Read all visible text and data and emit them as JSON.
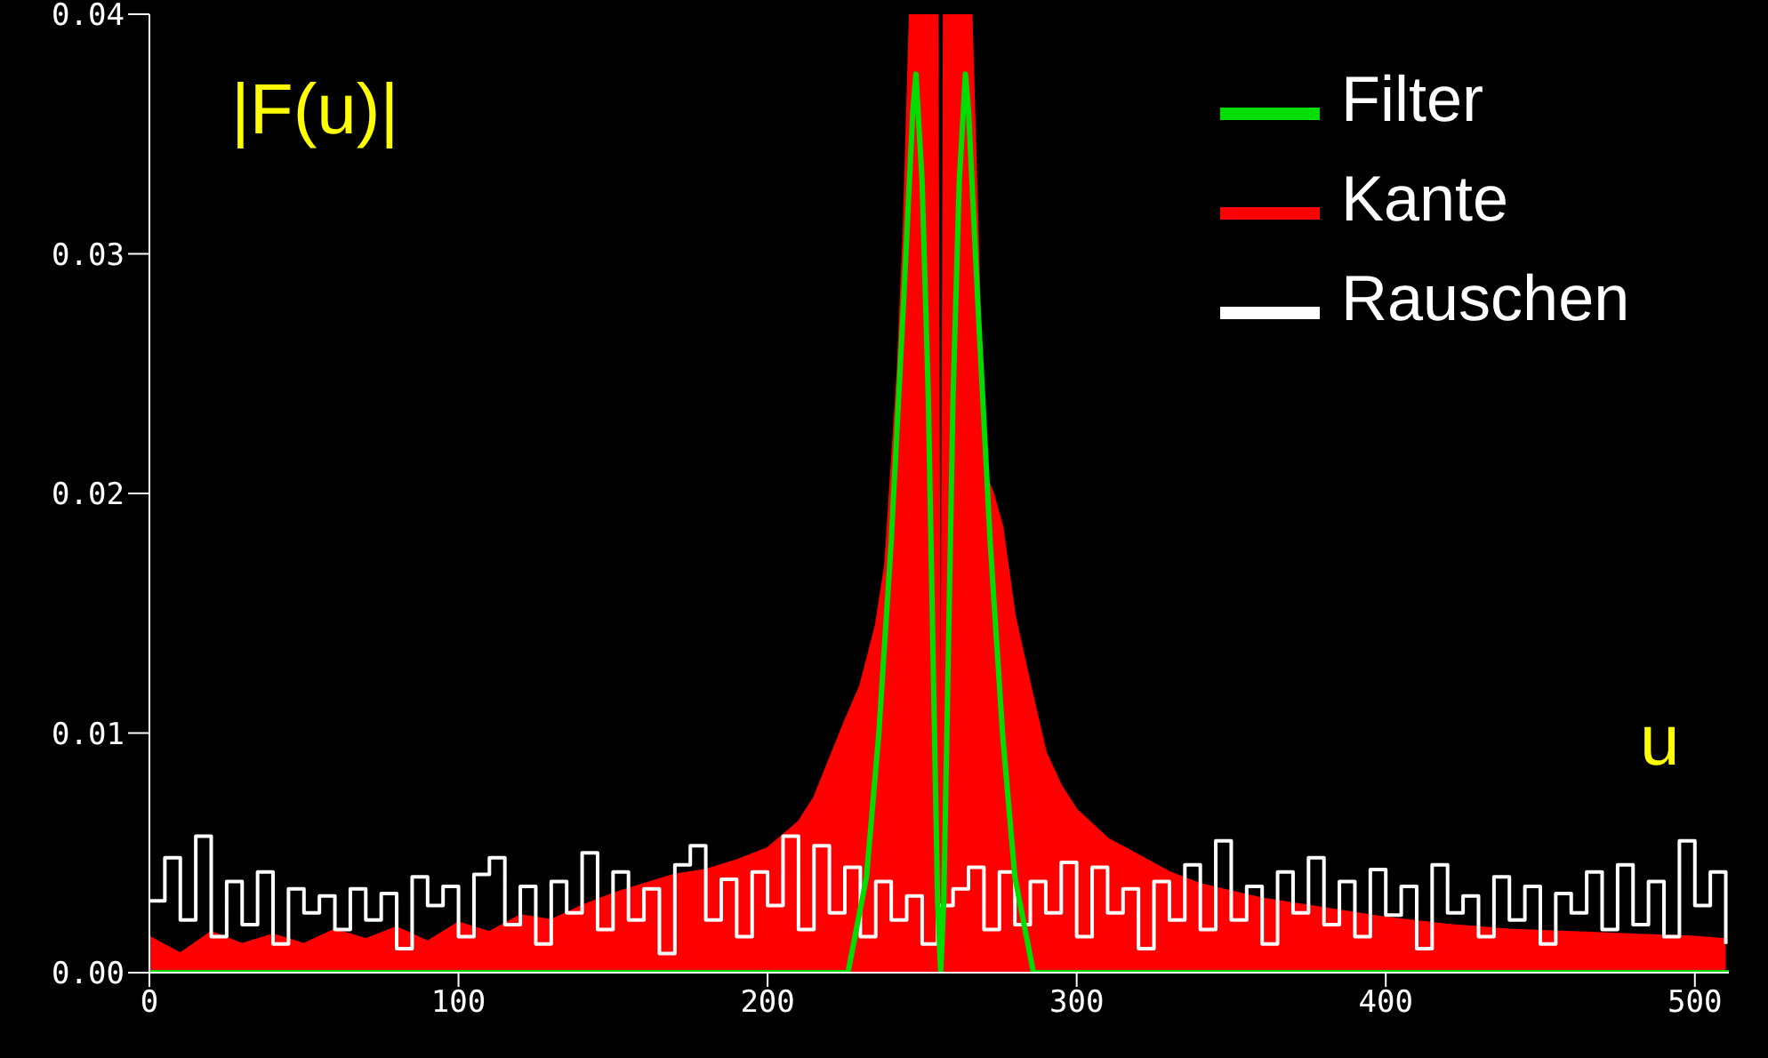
{
  "chart_data": {
    "type": "line",
    "annotations": [
      "u"
    ],
    "ylabel": "|F(u)|",
    "xlim": [
      0,
      511
    ],
    "xticks": [
      0,
      100,
      200,
      300,
      400,
      500
    ],
    "ylim": [
      0,
      0.04
    ],
    "yticks": [
      {
        "value": 0,
        "label": "0.00"
      },
      {
        "value": 0.01,
        "label": "0.01"
      },
      {
        "value": 0.02,
        "label": "0.02"
      },
      {
        "value": 0.03,
        "label": "0.03"
      },
      {
        "value": 0.04,
        "label": "0.04"
      }
    ],
    "legend": "top right",
    "grid": false,
    "series": [
      {
        "name": "Kante",
        "type": "area",
        "color": "#ff0000",
        "x": [
          0,
          10,
          20,
          30,
          40,
          50,
          60,
          70,
          80,
          90,
          100,
          110,
          120,
          130,
          140,
          150,
          160,
          170,
          180,
          190,
          200,
          210,
          215,
          220,
          225,
          230,
          235,
          238,
          240,
          242,
          244,
          246,
          250,
          254,
          255,
          256,
          257,
          260,
          264,
          266,
          268,
          270,
          273,
          276,
          280,
          285,
          290,
          295,
          300,
          310,
          320,
          330,
          340,
          350,
          360,
          380,
          400,
          420,
          440,
          460,
          480,
          500,
          510
        ],
        "values": [
          0.0015,
          0.0008,
          0.0017,
          0.0012,
          0.0016,
          0.0012,
          0.0018,
          0.0014,
          0.0019,
          0.0013,
          0.0021,
          0.0017,
          0.0024,
          0.0022,
          0.0028,
          0.0033,
          0.0037,
          0.0041,
          0.0043,
          0.0047,
          0.0052,
          0.0063,
          0.0073,
          0.0089,
          0.0105,
          0.012,
          0.0145,
          0.017,
          0.021,
          0.025,
          0.031,
          0.04,
          0.04,
          0.04,
          0.04,
          0,
          0.04,
          0.04,
          0.04,
          0.04,
          0.031,
          0.021,
          0.02,
          0.0186,
          0.0149,
          0.012,
          0.0092,
          0.0078,
          0.0068,
          0.0056,
          0.0049,
          0.0042,
          0.0037,
          0.0034,
          0.0031,
          0.0027,
          0.0023,
          0.002,
          0.0018,
          0.0017,
          0.0016,
          0.0015,
          0.0014
        ]
      },
      {
        "name": "Rauschen",
        "type": "step",
        "color": "#ffffff",
        "x": [
          0,
          5,
          10,
          15,
          20,
          25,
          30,
          35,
          40,
          45,
          50,
          55,
          60,
          65,
          70,
          75,
          80,
          85,
          90,
          95,
          100,
          105,
          110,
          115,
          120,
          125,
          130,
          135,
          140,
          145,
          150,
          155,
          160,
          165,
          170,
          175,
          180,
          185,
          190,
          195,
          200,
          205,
          210,
          215,
          220,
          225,
          230,
          235,
          240,
          245,
          250,
          255,
          260,
          265,
          270,
          275,
          280,
          285,
          290,
          295,
          300,
          305,
          310,
          315,
          320,
          325,
          330,
          335,
          340,
          345,
          350,
          355,
          360,
          365,
          370,
          375,
          380,
          385,
          390,
          395,
          400,
          405,
          410,
          415,
          420,
          425,
          430,
          435,
          440,
          445,
          450,
          455,
          460,
          465,
          470,
          475,
          480,
          485,
          490,
          495,
          500,
          505,
          510
        ],
        "values": [
          0.003,
          0.0048,
          0.0022,
          0.0057,
          0.0015,
          0.0038,
          0.002,
          0.0042,
          0.0012,
          0.0035,
          0.0025,
          0.0032,
          0.0018,
          0.0035,
          0.0022,
          0.0033,
          0.001,
          0.004,
          0.0028,
          0.0036,
          0.0015,
          0.0041,
          0.0048,
          0.002,
          0.0036,
          0.0012,
          0.0038,
          0.0025,
          0.005,
          0.0018,
          0.0042,
          0.0022,
          0.0035,
          0.0008,
          0.0045,
          0.0053,
          0.0022,
          0.0039,
          0.0015,
          0.0042,
          0.0028,
          0.0057,
          0.0018,
          0.0053,
          0.0025,
          0.0044,
          0.0015,
          0.0038,
          0.0022,
          0.0032,
          0.0012,
          0.0028,
          0.0035,
          0.0044,
          0.0018,
          0.0042,
          0.002,
          0.0038,
          0.0025,
          0.0046,
          0.0015,
          0.0044,
          0.0025,
          0.0035,
          0.001,
          0.0038,
          0.0022,
          0.0045,
          0.0018,
          0.0055,
          0.0022,
          0.0036,
          0.0012,
          0.0042,
          0.0025,
          0.0048,
          0.002,
          0.0038,
          0.0015,
          0.0043,
          0.0024,
          0.0036,
          0.001,
          0.0045,
          0.0025,
          0.0032,
          0.0015,
          0.004,
          0.0022,
          0.0036,
          0.0012,
          0.0033,
          0.0025,
          0.0042,
          0.0018,
          0.0045,
          0.002,
          0.0038,
          0.0015,
          0.0055,
          0.0028,
          0.0042,
          0.0012
        ]
      },
      {
        "name": "Filter",
        "color": "#00dd00",
        "x": [
          0,
          226,
          229,
          232,
          236,
          240,
          244,
          247,
          248,
          250,
          252,
          254,
          255,
          256,
          257,
          258,
          260,
          262,
          264,
          265,
          268,
          272,
          276,
          280,
          283,
          286,
          511
        ],
        "values": [
          0,
          0,
          0.002,
          0.004,
          0.01,
          0.018,
          0.028,
          0.036,
          0.0375,
          0.033,
          0.024,
          0.01,
          0.003,
          0,
          0.003,
          0.01,
          0.024,
          0.033,
          0.0375,
          0.036,
          0.028,
          0.018,
          0.01,
          0.004,
          0.002,
          0,
          0
        ]
      }
    ]
  }
}
